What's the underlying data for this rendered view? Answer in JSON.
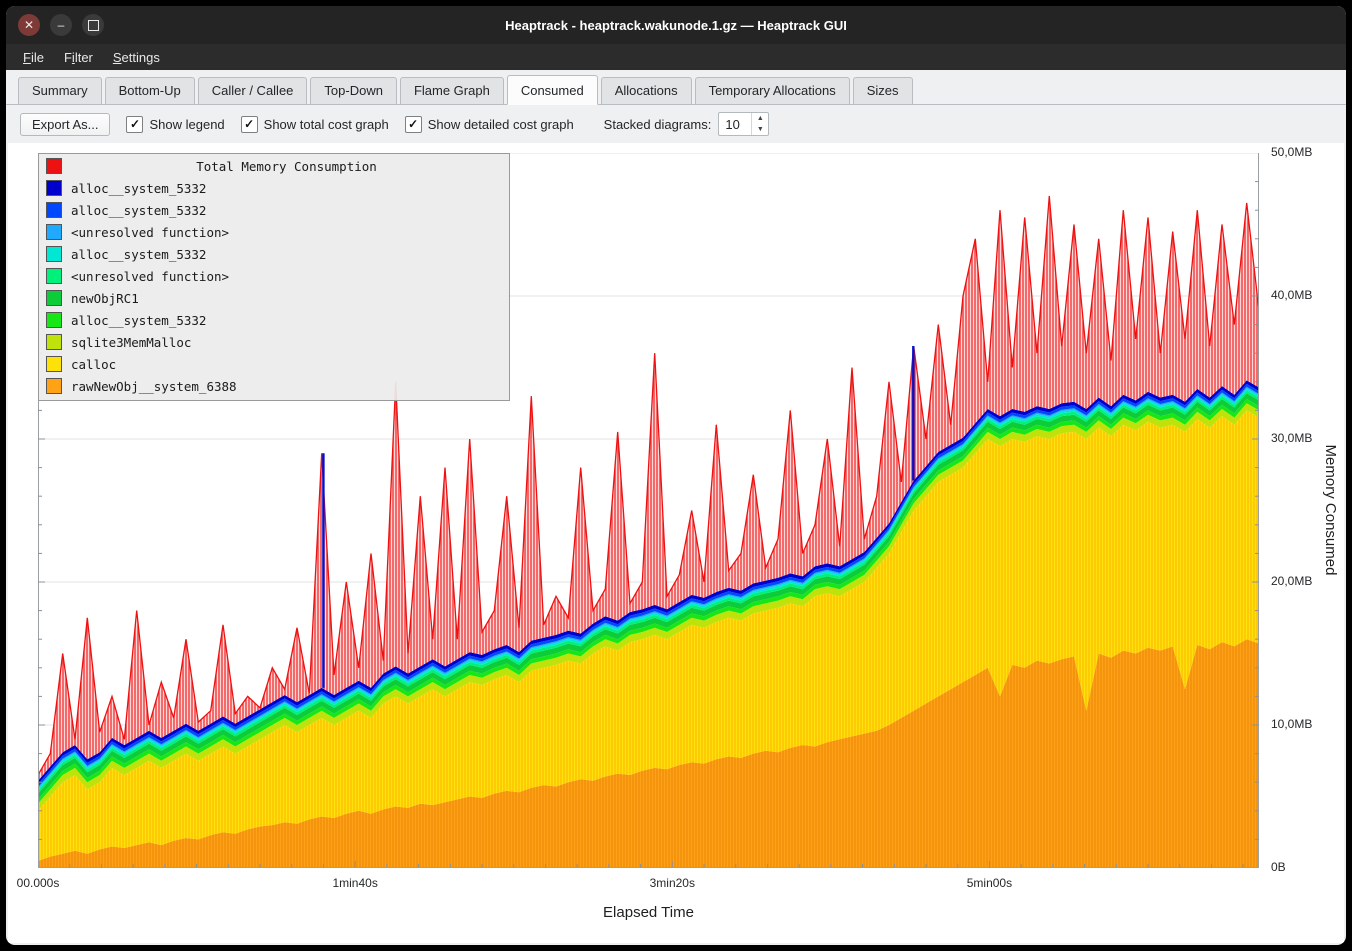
{
  "titlebar": {
    "title": "Heaptrack - heaptrack.wakunode.1.gz — Heaptrack GUI",
    "controls": [
      {
        "name": "close",
        "glyph": "✕"
      },
      {
        "name": "minimize",
        "glyph": "–"
      },
      {
        "name": "maximize",
        "glyph": ""
      }
    ]
  },
  "menubar": {
    "items": [
      {
        "label": "File",
        "accel": 0
      },
      {
        "label": "Filter",
        "accel": 1
      },
      {
        "label": "Settings",
        "accel": 0
      }
    ]
  },
  "tabs": {
    "active_index": 5,
    "items": [
      "Summary",
      "Bottom-Up",
      "Caller / Callee",
      "Top-Down",
      "Flame Graph",
      "Consumed",
      "Allocations",
      "Temporary Allocations",
      "Sizes"
    ]
  },
  "toolbar": {
    "export_label": "Export As...",
    "check_glyph": "✓",
    "checkboxes": [
      {
        "label": "Show legend",
        "checked": true
      },
      {
        "label": "Show total cost graph",
        "checked": true
      },
      {
        "label": "Show detailed cost graph",
        "checked": true
      }
    ],
    "stacked_label": "Stacked diagrams:",
    "spinner": {
      "value": "10",
      "up_glyph": "▲",
      "down_glyph": "▼"
    }
  },
  "legend": {
    "title": "Total Memory Consumption",
    "title_color": "#ee1111",
    "items": [
      {
        "label": "alloc__system_5332",
        "color": "#0000cd"
      },
      {
        "label": "alloc__system_5332",
        "color": "#0048ff"
      },
      {
        "label": "<unresolved function>",
        "color": "#20aaff"
      },
      {
        "label": "alloc__system_5332",
        "color": "#00e8d4"
      },
      {
        "label": "<unresolved function>",
        "color": "#00f07c"
      },
      {
        "label": "newObjRC1",
        "color": "#0ccc3a"
      },
      {
        "label": "alloc__system_5332",
        "color": "#17e617"
      },
      {
        "label": "sqlite3MemMalloc",
        "color": "#bfe30a"
      },
      {
        "label": "calloc",
        "color": "#ffe10a"
      },
      {
        "label": "rawNewObj__system_6388",
        "color": "#ffa216"
      }
    ]
  },
  "chart_data": {
    "type": "area",
    "title": "Total Memory Consumption",
    "xlabel": "Elapsed Time",
    "ylabel": "Memory Consumed",
    "ylim": [
      0,
      50
    ],
    "x_max_seconds": 385,
    "grid": "horizontal",
    "legend_position": "top-left",
    "y_ticks": [
      {
        "label": "0B",
        "v": 0
      },
      {
        "label": "10,0MB",
        "v": 10
      },
      {
        "label": "20,0MB",
        "v": 20
      },
      {
        "label": "30,0MB",
        "v": 30
      },
      {
        "label": "40,0MB",
        "v": 40
      },
      {
        "label": "50,0MB",
        "v": 50
      }
    ],
    "x_ticks": [
      {
        "label": "00.000s",
        "t": 0
      },
      {
        "label": "1min40s",
        "t": 100
      },
      {
        "label": "3min20s",
        "t": 200
      },
      {
        "label": "5min00s",
        "t": 300
      }
    ],
    "patterns": {
      "red-hatch": {
        "bg": "#ffd7d7",
        "line": "#ef2929",
        "line_opacity": 0.9
      },
      "yellow-hatch": {
        "bg": "#ffe10a",
        "line": "#f5a800",
        "line_opacity": 0.55
      },
      "orange-hatch": {
        "bg": "#ffa216",
        "line": "#e07800",
        "line_opacity": 0.5
      }
    },
    "stack": [
      {
        "name": "rawNewObj__system_6388",
        "color": "#ffa216",
        "pattern": "orange-hatch",
        "values": [
          0.5,
          0.8,
          1.0,
          1.2,
          1.0,
          1.3,
          1.5,
          1.4,
          1.6,
          1.8,
          1.6,
          1.9,
          2.1,
          2.0,
          2.3,
          2.5,
          2.4,
          2.7,
          2.9,
          3.0,
          3.2,
          3.1,
          3.4,
          3.6,
          3.5,
          3.8,
          4.0,
          3.8,
          4.1,
          4.3,
          4.2,
          4.5,
          4.4,
          4.6,
          4.8,
          5.0,
          4.9,
          5.2,
          5.4,
          5.3,
          5.6,
          5.8,
          5.7,
          6.0,
          6.2,
          6.1,
          6.4,
          6.6,
          6.5,
          6.8,
          7.0,
          6.9,
          7.2,
          7.4,
          7.3,
          7.6,
          7.8,
          7.7,
          8.0,
          8.2,
          8.1,
          8.4,
          8.6,
          8.5,
          8.8,
          9.0,
          9.2,
          9.4,
          9.6,
          10.0,
          10.5,
          11.0,
          11.5,
          12.0,
          12.5,
          13.0,
          13.5,
          14.0,
          12.0,
          14.2,
          14.0,
          14.5,
          14.3,
          14.6,
          14.8,
          11.0,
          15.0,
          14.7,
          15.2,
          15.0,
          15.4,
          15.2,
          15.5,
          12.5,
          15.6,
          15.3,
          15.8,
          15.5,
          16.0,
          15.7
        ]
      },
      {
        "name": "calloc",
        "color": "#ffe10a",
        "pattern": "yellow-hatch",
        "values": [
          3.5,
          4.2,
          5.0,
          5.3,
          4.5,
          4.7,
          5.5,
          5.1,
          5.4,
          5.7,
          5.4,
          5.6,
          5.9,
          5.5,
          5.7,
          6.0,
          5.6,
          5.8,
          6.1,
          6.5,
          6.8,
          6.4,
          6.6,
          6.9,
          6.5,
          6.7,
          7.0,
          6.7,
          7.4,
          7.7,
          7.3,
          7.5,
          8.1,
          7.4,
          7.7,
          8.0,
          7.9,
          8.0,
          8.1,
          7.7,
          8.2,
          8.2,
          8.5,
          8.5,
          8.1,
          8.9,
          9.1,
          8.6,
          9.3,
          9.2,
          9.3,
          9.1,
          9.3,
          9.6,
          9.5,
          9.6,
          9.7,
          9.6,
          9.8,
          9.8,
          10.1,
          10.1,
          9.7,
          10.5,
          10.4,
          10.0,
          10.3,
          10.6,
          11.4,
          12.0,
          13.0,
          14.0,
          14.5,
          15.0,
          15.0,
          15.0,
          15.5,
          16.0,
          17.5,
          15.8,
          15.8,
          15.7,
          15.7,
          15.8,
          15.7,
          19.0,
          15.8,
          15.5,
          15.8,
          15.6,
          15.8,
          15.6,
          15.5,
          18.0,
          15.8,
          15.5,
          15.8,
          15.5,
          16.0,
          15.8
        ]
      },
      {
        "name": "sqlite3MemMalloc",
        "color": "#bfe30a",
        "thickness": 0.5
      },
      {
        "name": "alloc__system_5332",
        "color": "#17e617",
        "thickness": 0.3
      },
      {
        "name": "newObjRC1",
        "color": "#0ccc3a",
        "thickness": 0.4
      },
      {
        "name": "<unresolved function>",
        "color": "#00f07c",
        "thickness": 0.2
      },
      {
        "name": "alloc__system_5332",
        "color": "#00e8d4",
        "thickness": 0.15
      },
      {
        "name": "<unresolved function>",
        "color": "#20aaff",
        "thickness": 0.1
      },
      {
        "name": "alloc__system_5332",
        "color": "#0048ff",
        "thickness": 0.2
      },
      {
        "name": "alloc__system_5332",
        "color": "#0000cd",
        "thickness": 0.25
      }
    ],
    "total": {
      "name": "Total Memory Consumption",
      "color": "#ee1111",
      "pattern": "red-hatch",
      "values": [
        6.5,
        8.0,
        15.0,
        9.0,
        17.5,
        9.5,
        12.0,
        9.0,
        18.0,
        10.0,
        13.0,
        10.5,
        16.0,
        10.2,
        11.0,
        17.0,
        10.8,
        12.0,
        11.2,
        14.0,
        12.5,
        16.8,
        12.2,
        29.0,
        13.5,
        20.0,
        14.0,
        22.0,
        14.5,
        34.0,
        15.0,
        26.0,
        16.0,
        28.0,
        16.0,
        30.0,
        16.5,
        18.0,
        26.0,
        16.8,
        33.0,
        17.0,
        19.0,
        17.5,
        28.0,
        18.0,
        19.5,
        30.5,
        18.5,
        20.0,
        36.0,
        19.0,
        20.5,
        25.0,
        20.0,
        31.0,
        20.8,
        22.0,
        27.5,
        21.0,
        23.0,
        32.0,
        22.0,
        24.0,
        30.0,
        22.5,
        35.0,
        23.0,
        26.0,
        34.0,
        27.0,
        36.5,
        30.0,
        38.0,
        31.0,
        40.0,
        44.0,
        34.0,
        46.0,
        35.0,
        45.5,
        36.0,
        47.0,
        36.5,
        45.0,
        36.0,
        44.0,
        35.5,
        46.0,
        37.0,
        45.5,
        36.0,
        44.5,
        37.0,
        46.0,
        36.5,
        45.0,
        38.0,
        46.5,
        39.0
      ]
    },
    "blue_spikes": [
      {
        "t": 90,
        "v": 29.0
      },
      {
        "t": 276,
        "v": 36.5
      }
    ]
  }
}
